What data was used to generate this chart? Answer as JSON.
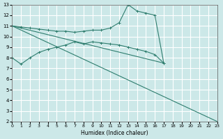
{
  "xlabel": "Humidex (Indice chaleur)",
  "xlim": [
    0,
    23
  ],
  "ylim": [
    2,
    13
  ],
  "xticks": [
    0,
    1,
    2,
    3,
    4,
    5,
    6,
    7,
    8,
    9,
    10,
    11,
    12,
    13,
    14,
    15,
    16,
    17,
    18,
    19,
    20,
    21,
    22,
    23
  ],
  "yticks": [
    2,
    3,
    4,
    5,
    6,
    7,
    8,
    9,
    10,
    11,
    12,
    13
  ],
  "bg_color": "#cce8e8",
  "grid_color": "#ffffff",
  "line_color": "#2e7d6e",
  "series": [
    {
      "x": [
        0,
        1,
        2,
        3,
        4,
        5,
        6,
        7,
        8,
        9,
        10,
        11,
        12,
        13,
        14,
        15,
        16,
        17
      ],
      "y": [
        11.0,
        10.9,
        10.8,
        10.7,
        10.6,
        10.5,
        10.5,
        10.4,
        10.5,
        10.6,
        10.6,
        10.8,
        11.3,
        13.0,
        12.4,
        12.2,
        12.0,
        7.5
      ],
      "marker": true
    },
    {
      "x": [
        0,
        1,
        2,
        3,
        4,
        5,
        6,
        7,
        8,
        9,
        10,
        11,
        12,
        13,
        14,
        15,
        16,
        17
      ],
      "y": [
        8.0,
        7.4,
        8.0,
        8.5,
        8.8,
        9.0,
        9.2,
        9.5,
        9.3,
        9.5,
        9.4,
        9.3,
        9.2,
        9.0,
        8.8,
        8.6,
        8.3,
        7.5
      ],
      "marker": true
    },
    {
      "x": [
        0,
        17
      ],
      "y": [
        11.0,
        7.5
      ],
      "marker": false
    },
    {
      "x": [
        0,
        23
      ],
      "y": [
        11.0,
        2.0
      ],
      "marker": false
    }
  ]
}
